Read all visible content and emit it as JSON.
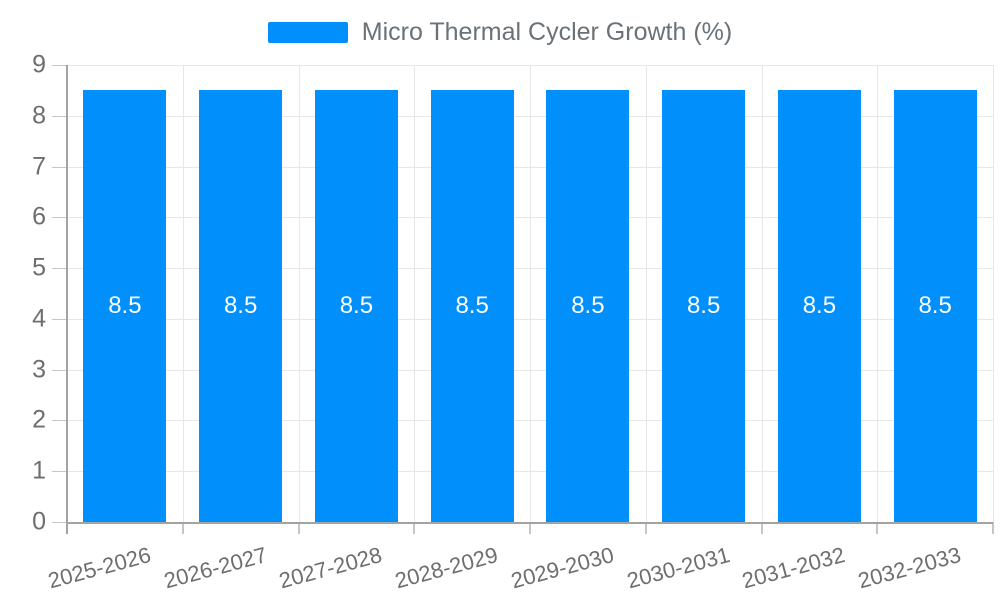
{
  "chart_data": {
    "type": "bar",
    "title": "Micro Thermal Cycler Growth (%)",
    "categories": [
      "2025-2026",
      "2026-2027",
      "2027-2028",
      "2028-2029",
      "2029-2030",
      "2030-2031",
      "2031-2032",
      "2032-2033"
    ],
    "series": [
      {
        "name": "Micro Thermal Cycler Growth (%)",
        "values": [
          8.5,
          8.5,
          8.5,
          8.5,
          8.5,
          8.5,
          8.5,
          8.5
        ]
      }
    ],
    "value_labels": [
      "8.5",
      "8.5",
      "8.5",
      "8.5",
      "8.5",
      "8.5",
      "8.5",
      "8.5"
    ],
    "xlabel": "",
    "ylabel": "",
    "ylim": [
      0,
      9
    ],
    "y_ticks": [
      0,
      1,
      2,
      3,
      4,
      5,
      6,
      7,
      8,
      9
    ],
    "grid": "on",
    "legend_position": "top-center",
    "colors": {
      "bar": "#008FFB",
      "grid": "#e7e7e7",
      "axis": "#a3a3a3",
      "tick": "#c6c6c6",
      "axis_label": "#6e6e6e",
      "legend_text": "#6b7277",
      "value_label": "#ffffff"
    }
  }
}
